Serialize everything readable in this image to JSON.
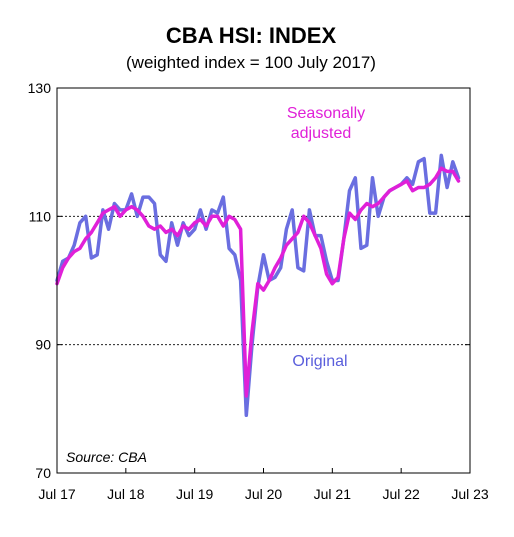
{
  "chart_data": {
    "type": "line",
    "title": "CBA HSI: INDEX",
    "subtitle": "(weighted index = 100 July 2017)",
    "xlabel": "",
    "ylabel": "",
    "ylim": [
      70,
      130
    ],
    "xlim": [
      "2017-07",
      "2023-07"
    ],
    "yticks": [
      70,
      90,
      110,
      130
    ],
    "xticks": [
      {
        "label": "Jul 17",
        "date": "2017-07"
      },
      {
        "label": "Jul 18",
        "date": "2018-07"
      },
      {
        "label": "Jul 19",
        "date": "2019-07"
      },
      {
        "label": "Jul 20",
        "date": "2020-07"
      },
      {
        "label": "Jul 21",
        "date": "2021-07"
      },
      {
        "label": "Jul 22",
        "date": "2022-07"
      },
      {
        "label": "Jul 23",
        "date": "2023-07"
      }
    ],
    "gridlines": [
      90,
      110
    ],
    "source": "Source: CBA",
    "annotations": [
      {
        "text": "Seasonally",
        "series": "Seasonally adjusted"
      },
      {
        "text": "adjusted",
        "series": "Seasonally adjusted"
      },
      {
        "text": "Original",
        "series": "Original"
      }
    ],
    "series": [
      {
        "name": "Original",
        "color": "#6a6ee0",
        "points": [
          [
            "2017-07",
            100
          ],
          [
            "2017-08",
            103.0
          ],
          [
            "2017-09",
            103.5
          ],
          [
            "2017-10",
            105.5
          ],
          [
            "2017-11",
            109.0
          ],
          [
            "2017-12",
            110.0
          ],
          [
            "2018-01",
            103.5
          ],
          [
            "2018-02",
            104.0
          ],
          [
            "2018-03",
            111.0
          ],
          [
            "2018-04",
            108.0
          ],
          [
            "2018-05",
            112.0
          ],
          [
            "2018-06",
            111.0
          ],
          [
            "2018-07",
            111.0
          ],
          [
            "2018-08",
            113.5
          ],
          [
            "2018-09",
            110.0
          ],
          [
            "2018-10",
            113.0
          ],
          [
            "2018-11",
            113.0
          ],
          [
            "2018-12",
            112.0
          ],
          [
            "2019-01",
            104.0
          ],
          [
            "2019-02",
            103.0
          ],
          [
            "2019-03",
            109.0
          ],
          [
            "2019-04",
            105.5
          ],
          [
            "2019-05",
            109.0
          ],
          [
            "2019-06",
            107.0
          ],
          [
            "2019-07",
            108.0
          ],
          [
            "2019-08",
            111.0
          ],
          [
            "2019-09",
            108.0
          ],
          [
            "2019-10",
            111.0
          ],
          [
            "2019-11",
            110.5
          ],
          [
            "2019-12",
            113.0
          ],
          [
            "2020-01",
            105.0
          ],
          [
            "2020-02",
            104.0
          ],
          [
            "2020-03",
            100.0
          ],
          [
            "2020-04",
            79.0
          ],
          [
            "2020-05",
            90.0
          ],
          [
            "2020-06",
            99.0
          ],
          [
            "2020-07",
            104.0
          ],
          [
            "2020-08",
            100.0
          ],
          [
            "2020-09",
            100.5
          ],
          [
            "2020-10",
            102.0
          ],
          [
            "2020-11",
            108.0
          ],
          [
            "2020-12",
            111.0
          ],
          [
            "2021-01",
            102.0
          ],
          [
            "2021-02",
            101.5
          ],
          [
            "2021-03",
            111.0
          ],
          [
            "2021-04",
            107.0
          ],
          [
            "2021-05",
            107.0
          ],
          [
            "2021-06",
            103.0
          ],
          [
            "2021-07",
            100.0
          ],
          [
            "2021-08",
            100.0
          ],
          [
            "2021-09",
            106.5
          ],
          [
            "2021-10",
            114.0
          ],
          [
            "2021-11",
            116.0
          ],
          [
            "2021-12",
            105.0
          ],
          [
            "2022-01",
            105.5
          ],
          [
            "2022-02",
            116.0
          ],
          [
            "2022-03",
            110.0
          ],
          [
            "2022-04",
            113.0
          ],
          [
            "2022-05",
            114.0
          ],
          [
            "2022-06",
            114.5
          ],
          [
            "2022-07",
            115.0
          ],
          [
            "2022-08",
            116.0
          ],
          [
            "2022-09",
            115.0
          ],
          [
            "2022-10",
            118.5
          ],
          [
            "2022-11",
            119.0
          ],
          [
            "2022-12",
            110.5
          ],
          [
            "2023-01",
            110.5
          ],
          [
            "2023-02",
            119.5
          ],
          [
            "2023-03",
            114.5
          ],
          [
            "2023-04",
            118.5
          ],
          [
            "2023-05",
            116.0
          ]
        ]
      },
      {
        "name": "Seasonally adjusted",
        "color": "#e020d8",
        "points": [
          [
            "2017-07",
            99.5
          ],
          [
            "2017-08",
            102.0
          ],
          [
            "2017-09",
            103.5
          ],
          [
            "2017-10",
            104.5
          ],
          [
            "2017-11",
            105.0
          ],
          [
            "2017-12",
            106.5
          ],
          [
            "2018-01",
            107.5
          ],
          [
            "2018-02",
            109.0
          ],
          [
            "2018-03",
            110.5
          ],
          [
            "2018-04",
            111.0
          ],
          [
            "2018-05",
            111.5
          ],
          [
            "2018-06",
            110.0
          ],
          [
            "2018-07",
            111.0
          ],
          [
            "2018-08",
            111.5
          ],
          [
            "2018-09",
            111.0
          ],
          [
            "2018-10",
            110.0
          ],
          [
            "2018-11",
            108.5
          ],
          [
            "2018-12",
            108.0
          ],
          [
            "2019-01",
            108.5
          ],
          [
            "2019-02",
            107.5
          ],
          [
            "2019-03",
            108.0
          ],
          [
            "2019-04",
            107.0
          ],
          [
            "2019-05",
            108.5
          ],
          [
            "2019-06",
            108.0
          ],
          [
            "2019-07",
            109.0
          ],
          [
            "2019-08",
            109.5
          ],
          [
            "2019-09",
            108.5
          ],
          [
            "2019-10",
            110.0
          ],
          [
            "2019-11",
            110.0
          ],
          [
            "2019-12",
            108.5
          ],
          [
            "2020-01",
            110.0
          ],
          [
            "2020-02",
            109.5
          ],
          [
            "2020-03",
            108.0
          ],
          [
            "2020-04",
            82.0
          ],
          [
            "2020-05",
            92.0
          ],
          [
            "2020-06",
            99.5
          ],
          [
            "2020-07",
            98.5
          ],
          [
            "2020-08",
            100.0
          ],
          [
            "2020-09",
            102.0
          ],
          [
            "2020-10",
            103.5
          ],
          [
            "2020-11",
            105.5
          ],
          [
            "2020-12",
            106.5
          ],
          [
            "2021-01",
            107.5
          ],
          [
            "2021-02",
            110.0
          ],
          [
            "2021-03",
            109.0
          ],
          [
            "2021-04",
            107.0
          ],
          [
            "2021-05",
            105.0
          ],
          [
            "2021-06",
            101.0
          ],
          [
            "2021-07",
            99.5
          ],
          [
            "2021-08",
            100.5
          ],
          [
            "2021-09",
            106.5
          ],
          [
            "2021-10",
            110.5
          ],
          [
            "2021-11",
            109.5
          ],
          [
            "2021-12",
            111.0
          ],
          [
            "2022-01",
            112.0
          ],
          [
            "2022-02",
            111.5
          ],
          [
            "2022-03",
            112.0
          ],
          [
            "2022-04",
            113.0
          ],
          [
            "2022-05",
            114.0
          ],
          [
            "2022-06",
            114.5
          ],
          [
            "2022-07",
            115.0
          ],
          [
            "2022-08",
            115.5
          ],
          [
            "2022-09",
            114.0
          ],
          [
            "2022-10",
            114.5
          ],
          [
            "2022-11",
            114.5
          ],
          [
            "2022-12",
            115.0
          ],
          [
            "2023-01",
            116.0
          ],
          [
            "2023-02",
            117.5
          ],
          [
            "2023-03",
            117.0
          ],
          [
            "2023-04",
            117.0
          ],
          [
            "2023-05",
            115.5
          ]
        ]
      }
    ]
  }
}
